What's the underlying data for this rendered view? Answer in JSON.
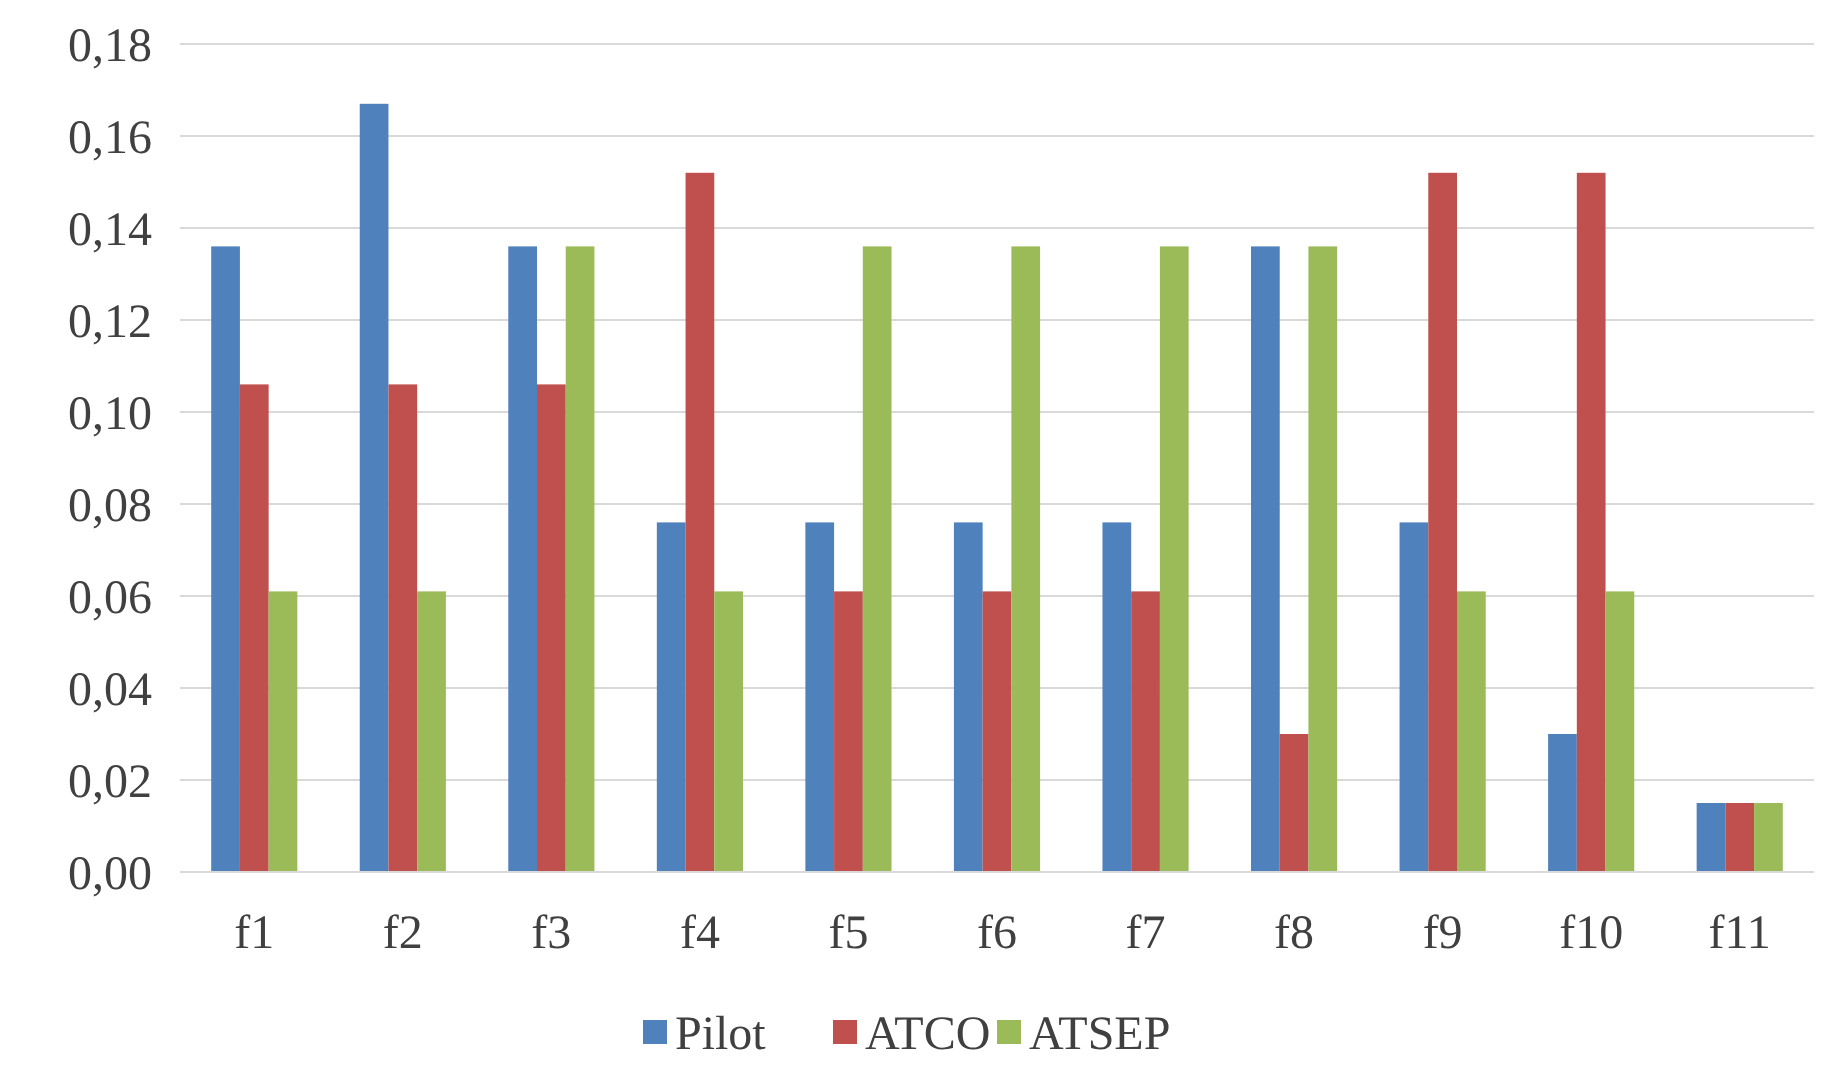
{
  "chart_data": {
    "type": "bar",
    "categories": [
      "f1",
      "f2",
      "f3",
      "f4",
      "f5",
      "f6",
      "f7",
      "f8",
      "f9",
      "f10",
      "f11"
    ],
    "series": [
      {
        "name": "Pilot",
        "color": "#4f81bd",
        "values": [
          0.136,
          0.167,
          0.136,
          0.076,
          0.076,
          0.076,
          0.076,
          0.136,
          0.076,
          0.03,
          0.015
        ]
      },
      {
        "name": "ATCO",
        "color": "#c0504d",
        "values": [
          0.106,
          0.106,
          0.106,
          0.152,
          0.061,
          0.061,
          0.061,
          0.03,
          0.152,
          0.152,
          0.015
        ]
      },
      {
        "name": "ATSEP",
        "color": "#9bbb59",
        "values": [
          0.061,
          0.061,
          0.136,
          0.061,
          0.136,
          0.136,
          0.136,
          0.136,
          0.061,
          0.061,
          0.015
        ]
      }
    ],
    "ylim": [
      0,
      0.18
    ],
    "yticks": [
      {
        "value": 0,
        "label": "0,00"
      },
      {
        "value": 0.02,
        "label": "0,02"
      },
      {
        "value": 0.04,
        "label": "0,04"
      },
      {
        "value": 0.06,
        "label": "0,06"
      },
      {
        "value": 0.08,
        "label": "0,08"
      },
      {
        "value": 0.1,
        "label": "0,10"
      },
      {
        "value": 0.12,
        "label": "0,12"
      },
      {
        "value": 0.14,
        "label": "0,14"
      },
      {
        "value": 0.16,
        "label": "0,16"
      },
      {
        "value": 0.18,
        "label": "0,18"
      }
    ],
    "grid": "y",
    "legend": "bottom"
  }
}
